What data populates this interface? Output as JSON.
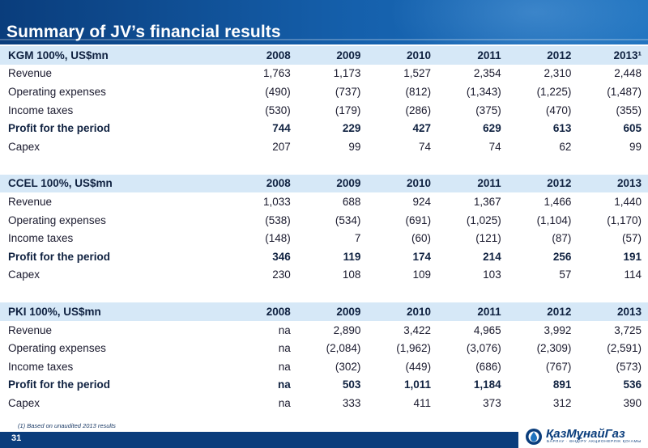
{
  "title": "Summary of JV’s financial results",
  "tables": [
    {
      "header": [
        "KGM 100%, US$mn",
        "2008",
        "2009",
        "2010",
        "2011",
        "2012",
        "2013¹"
      ],
      "rows": [
        {
          "label": "Revenue",
          "values": [
            "1,763",
            "1,173",
            "1,527",
            "2,354",
            "2,310",
            "2,448"
          ]
        },
        {
          "label": "Operating expenses",
          "values": [
            "(490)",
            "(737)",
            "(812)",
            "(1,343)",
            "(1,225)",
            "(1,487)"
          ]
        },
        {
          "label": "Income taxes",
          "values": [
            "(530)",
            "(179)",
            "(286)",
            "(375)",
            "(470)",
            "(355)"
          ]
        },
        {
          "label": "Profit for the period",
          "values": [
            "744",
            "229",
            "427",
            "629",
            "613",
            "605"
          ]
        },
        {
          "label": "Capex",
          "values": [
            "207",
            "99",
            "74",
            "74",
            "62",
            "99"
          ]
        }
      ]
    },
    {
      "header": [
        "CCEL 100%, US$mn",
        "2008",
        "2009",
        "2010",
        "2011",
        "2012",
        "2013"
      ],
      "rows": [
        {
          "label": "Revenue",
          "values": [
            "1,033",
            "688",
            "924",
            "1,367",
            "1,466",
            "1,440"
          ]
        },
        {
          "label": "Operating expenses",
          "values": [
            "(538)",
            "(534)",
            "(691)",
            "(1,025)",
            "(1,104)",
            "(1,170)"
          ]
        },
        {
          "label": "Income taxes",
          "values": [
            "(148)",
            "7",
            "(60)",
            "(121)",
            "(87)",
            "(57)"
          ]
        },
        {
          "label": "Profit for the period",
          "values": [
            "346",
            "119",
            "174",
            "214",
            "256",
            "191"
          ]
        },
        {
          "label": "Capex",
          "values": [
            "230",
            "108",
            "109",
            "103",
            "57",
            "114"
          ]
        }
      ]
    },
    {
      "header": [
        "PKI 100%, US$mn",
        "2008",
        "2009",
        "2010",
        "2011",
        "2012",
        "2013"
      ],
      "rows": [
        {
          "label": "Revenue",
          "values": [
            "na",
            "2,890",
            "3,422",
            "4,965",
            "3,992",
            "3,725"
          ]
        },
        {
          "label": "Operating expenses",
          "values": [
            "na",
            "(2,084)",
            "(1,962)",
            "(3,076)",
            "(2,309)",
            "(2,591)"
          ]
        },
        {
          "label": "Income taxes",
          "values": [
            "na",
            "(302)",
            "(449)",
            "(686)",
            "(767)",
            "(573)"
          ]
        },
        {
          "label": "Profit for the period",
          "values": [
            "na",
            "503",
            "1,011",
            "1,184",
            "891",
            "536"
          ]
        },
        {
          "label": "Capex",
          "values": [
            "na",
            "333",
            "411",
            "373",
            "312",
            "390"
          ]
        }
      ]
    }
  ],
  "footnote": "(1) Based on unaudited 2013 results",
  "page_number": "31",
  "logo": {
    "name": "ҚазМұнайГаз",
    "tagline": "БАРЛАУ · ӨНДІРУ АКЦИОНЕРЛІК ҚОғАМЫ"
  },
  "colors": {
    "header_bg": "#0a3d7c",
    "row_header_bg": "#d6e8f7",
    "text": "#1a1a2e"
  }
}
